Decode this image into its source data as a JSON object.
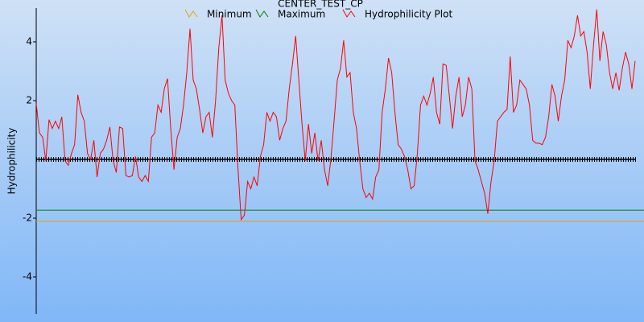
{
  "chart_data": {
    "type": "line",
    "title": "CENTER_TEST_CP",
    "y_label": "Hydrophilicity",
    "ylim": [
      -5.26,
      5.15
    ],
    "yticks": [
      -4,
      -2,
      2,
      4
    ],
    "series": [
      {
        "name": "Minimum",
        "color": "#e8a000",
        "value": -2.11
      },
      {
        "name": "Maximum",
        "color": "#008000",
        "value": -1.73
      },
      {
        "name": "Hydrophilicity Plot",
        "color": "#ff0000",
        "values": [
          1.9,
          0.9,
          0.75,
          -0.05,
          1.35,
          1.05,
          1.3,
          1.05,
          1.45,
          -0.05,
          -0.2,
          0.2,
          0.5,
          2.2,
          1.6,
          1.3,
          0.2,
          0,
          0.65,
          -0.6,
          0.2,
          0.35,
          0.65,
          1.1,
          -0.05,
          -0.45,
          1.1,
          1.05,
          -0.55,
          -0.6,
          -0.55,
          0.1,
          -0.6,
          -0.75,
          -0.55,
          -0.75,
          0.75,
          0.9,
          1.85,
          1.6,
          2.4,
          2.75,
          1.05,
          -0.35,
          0.75,
          1.05,
          1.85,
          2.95,
          4.45,
          2.7,
          2.4,
          1.7,
          0.9,
          1.45,
          1.6,
          0.75,
          2.0,
          3.8,
          4.9,
          2.7,
          2.25,
          2.0,
          1.85,
          -0.35,
          -2.05,
          -1.9,
          -0.75,
          -1.0,
          -0.6,
          -0.9,
          0.1,
          0.5,
          1.6,
          1.3,
          1.6,
          1.45,
          0.65,
          1.05,
          1.3,
          2.4,
          3.25,
          4.2,
          2.7,
          1.2,
          -0.05,
          1.2,
          0.2,
          0.9,
          -0.05,
          0.65,
          -0.35,
          -0.9,
          0,
          1.3,
          2.7,
          3.1,
          4.05,
          2.8,
          2.95,
          1.6,
          1.05,
          -0.05,
          -1.0,
          -1.3,
          -1.15,
          -1.35,
          -0.6,
          -0.35,
          1.6,
          2.4,
          3.45,
          2.95,
          1.6,
          0.5,
          0.35,
          0.1,
          -0.35,
          -1.0,
          -0.9,
          0.2,
          1.85,
          2.15,
          1.85,
          2.25,
          2.8,
          1.6,
          1.2,
          3.25,
          3.2,
          2.15,
          1.05,
          2.15,
          2.8,
          1.45,
          1.85,
          2.8,
          2.4,
          -0.05,
          -0.35,
          -0.75,
          -1.15,
          -1.85,
          -0.75,
          -0.05,
          1.3,
          1.45,
          1.6,
          1.7,
          3.5,
          1.6,
          1.85,
          2.7,
          2.55,
          2.4,
          1.85,
          0.65,
          0.55,
          0.55,
          0.5,
          0.75,
          1.45,
          2.55,
          2.15,
          1.3,
          2.15,
          2.7,
          4.05,
          3.8,
          4.2,
          4.9,
          4.2,
          4.35,
          3.65,
          2.4,
          3.9,
          5.1,
          3.35,
          4.35,
          3.9,
          2.95,
          2.4,
          2.95,
          2.35,
          3.1,
          3.65,
          3.25,
          2.4,
          3.35
        ]
      }
    ]
  }
}
